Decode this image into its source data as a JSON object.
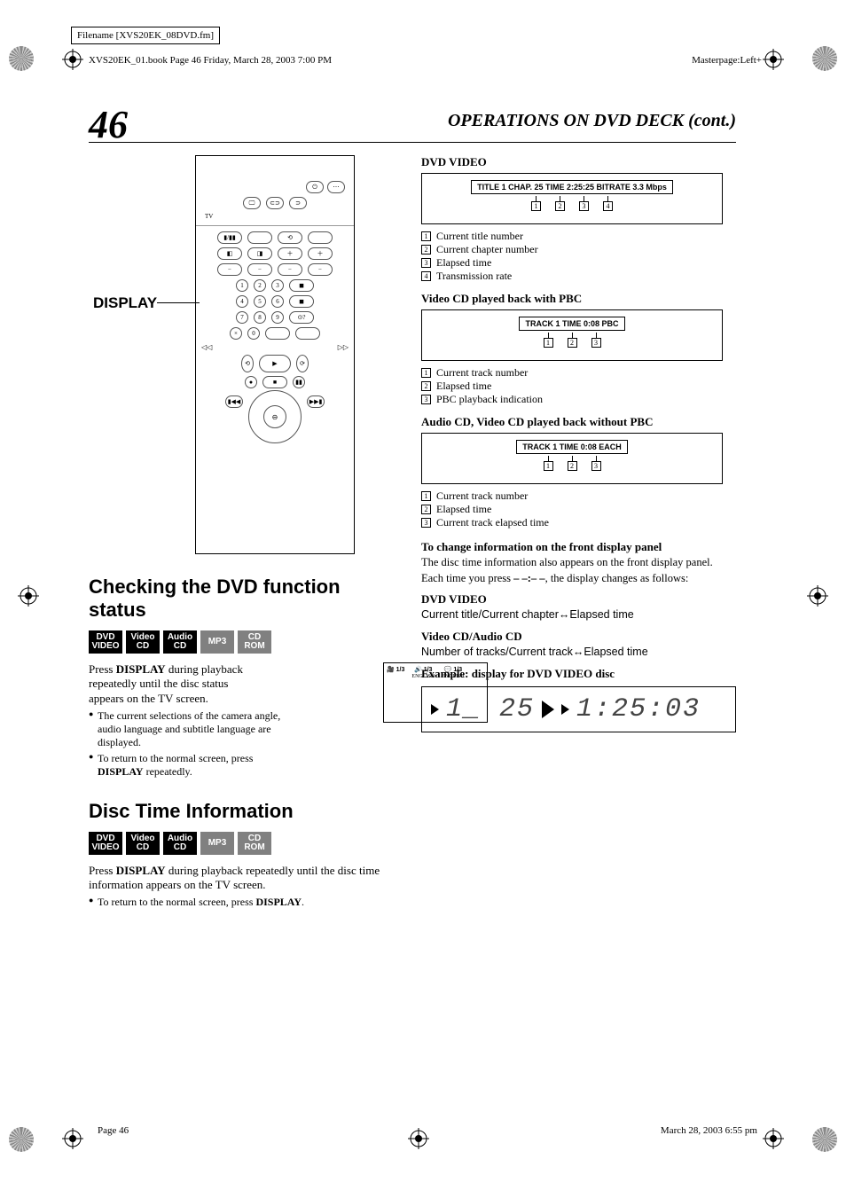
{
  "meta": {
    "filename_box": "Filename [XVS20EK_08DVD.fm]",
    "book_line": "XVS20EK_01.book  Page 46  Friday, March 28, 2003  7:00 PM",
    "masterpage": "Masterpage:Left+",
    "page_number": "46",
    "section_title": "OPERATIONS ON DVD DECK (cont.)",
    "footer_left": "Page 46",
    "footer_right": "March 28, 2003  6:55 pm",
    "dash_placeholder": "– –:– –"
  },
  "left": {
    "display_label": "DISPLAY",
    "heading1": "Checking the DVD function status",
    "badges1": [
      "DVD VIDEO",
      "Video CD",
      "Audio CD",
      "MP3",
      "CD ROM"
    ],
    "badges1_dim": [
      false,
      false,
      false,
      true,
      true
    ],
    "para1_pre": "Press ",
    "para1_b": "DISPLAY",
    "para1_post": " during playback repeatedly until the disc status appears on the TV screen.",
    "bullet1a": "The current selections of the camera angle, audio language and subtitle language are displayed.",
    "bullet1b_pre": "To return to the normal screen, press ",
    "bullet1b_b": "DISPLAY",
    "bullet1b_post": " repeatedly.",
    "status_box": {
      "items": [
        {
          "icon": "🎥",
          "val": "1/3",
          "lbl": ""
        },
        {
          "icon": "🔊",
          "val": "1/3",
          "lbl": "ENGLISH"
        },
        {
          "icon": "💬",
          "val": "1/3",
          "lbl": "ENGLISH"
        }
      ]
    },
    "heading2": "Disc Time Information",
    "badges2": [
      "DVD VIDEO",
      "Video CD",
      "Audio CD",
      "MP3",
      "CD ROM"
    ],
    "badges2_dim": [
      false,
      false,
      false,
      true,
      true
    ],
    "para2_pre": "Press ",
    "para2_b": "DISPLAY",
    "para2_post": " during playback repeatedly until the disc time information appears on the TV screen.",
    "bullet2_pre": "To return to the normal screen, press ",
    "bullet2_b": "DISPLAY",
    "bullet2_post": "."
  },
  "right": {
    "dvd_video": {
      "heading": "DVD VIDEO",
      "display": "TITLE 1 CHAP. 25 TIME 2:25:25  BITRATE 3.3 Mbps",
      "callouts": [
        "1",
        "2",
        "3",
        "4"
      ],
      "legend": [
        "Current title number",
        "Current chapter number",
        "Elapsed time",
        "Transmission rate"
      ]
    },
    "vcd_pbc": {
      "heading": "Video CD played back with PBC",
      "display": "TRACK 1 TIME  0:08  PBC",
      "callouts": [
        "1",
        "2",
        "3"
      ],
      "legend": [
        "Current track number",
        "Elapsed time",
        "PBC playback indication"
      ]
    },
    "audio_cd": {
      "heading": "Audio CD, Video CD played back without PBC",
      "display": "TRACK 1 TIME  0:08   EACH",
      "callouts": [
        "1",
        "2",
        "3"
      ],
      "legend": [
        "Current track number",
        "Elapsed time",
        "Current track elapsed time"
      ]
    },
    "change_info": {
      "heading": "To change information on the front display panel",
      "para1": "The disc time information also appears on the front display panel.",
      "para2_pre": "Each time you press ",
      "para2_mid": "– –:– –",
      "para2_post": ", the display changes as follows:",
      "dvd_h": "DVD VIDEO",
      "dvd_line": "Current title/Current chapter↔Elapsed time",
      "vcd_h": "Video CD/Audio CD",
      "vcd_line": "Number of tracks/Current track↔Elapsed time",
      "example_h": "Example: display for DVD VIDEO disc",
      "seg1": "1_ 25",
      "seg2": "1:25:03"
    }
  },
  "colors": {
    "text": "#000000",
    "bg": "#ffffff",
    "badge_bg": "#000000",
    "badge_dim": "#808080",
    "badge_fg": "#ffffff"
  }
}
